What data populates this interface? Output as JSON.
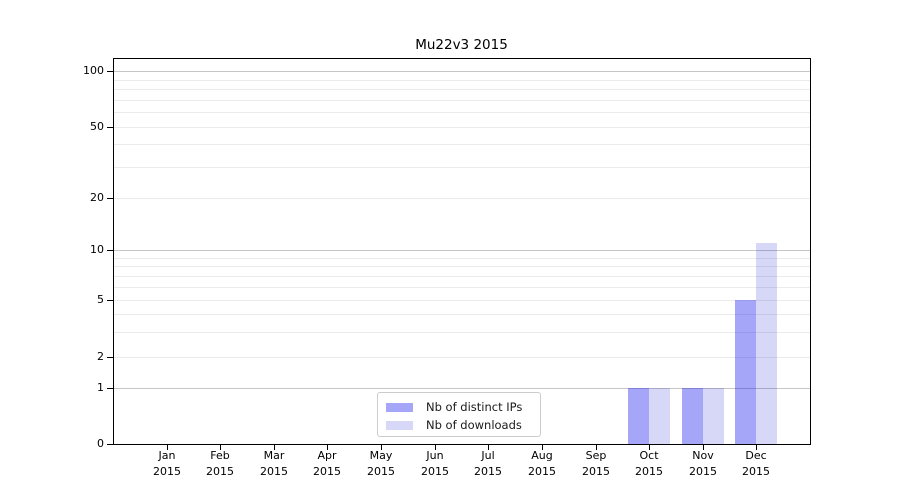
{
  "title": "Mu22v3 2015",
  "chart_data": {
    "type": "bar",
    "title": "Mu22v3 2015",
    "xlabel": "",
    "ylabel": "",
    "x_year": "2015",
    "categories": [
      "Jan",
      "Feb",
      "Mar",
      "Apr",
      "May",
      "Jun",
      "Jul",
      "Aug",
      "Sep",
      "Oct",
      "Nov",
      "Dec"
    ],
    "series": [
      {
        "name": "Nb of distinct IPs",
        "values": [
          0,
          0,
          0,
          0,
          0,
          0,
          0,
          0,
          0,
          1,
          1,
          5
        ],
        "color_rgba": "rgba(8,8,235,0.36)",
        "color_hex_on_white": "#a6a6f8"
      },
      {
        "name": "Nb of downloads",
        "values": [
          0,
          0,
          0,
          0,
          0,
          0,
          0,
          0,
          0,
          1,
          1,
          11
        ],
        "color_rgba": "rgba(8,8,210,0.16)",
        "color_hex_on_white": "#d9d9f8"
      }
    ],
    "yscale": "symlog",
    "ylim": [
      0,
      117
    ],
    "yticks": [
      0,
      1,
      2,
      5,
      10,
      20,
      50,
      100
    ],
    "gridlines_major": [
      1,
      10,
      100
    ],
    "gridlines_minor": [
      2,
      3,
      4,
      5,
      6,
      7,
      8,
      9,
      20,
      30,
      40,
      50,
      60,
      70,
      80,
      90
    ],
    "grid": true,
    "legend_position": "lower center inside",
    "colors": {
      "grid_major": "#c6c6c6",
      "grid_minor": "#ebebeb",
      "axis": "#000000",
      "background": "#ffffff"
    }
  }
}
